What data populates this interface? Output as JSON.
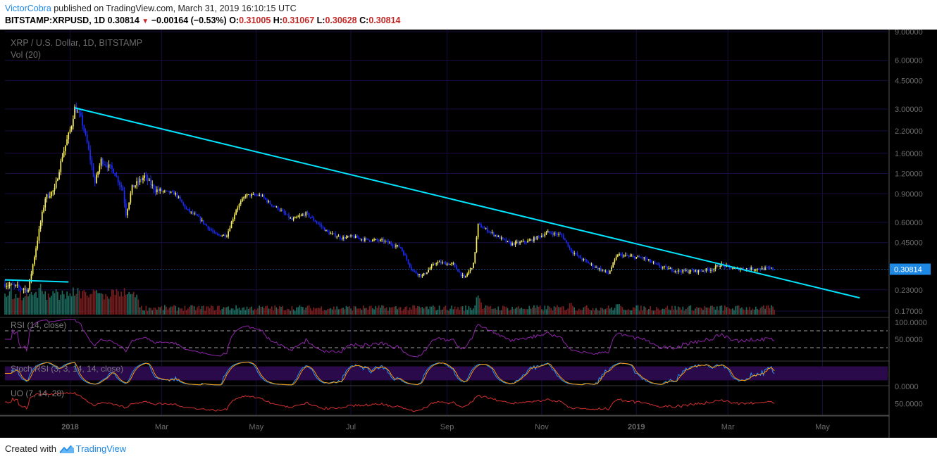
{
  "header": {
    "author": "VictorCobra",
    "published_text": " published on TradingView.com, March 31, 2019 16:10:15 UTC",
    "symbol": "BITSTAMP:XRPUSD, 1D",
    "last": "0.30814",
    "change": "−0.00164 (−0.53%)",
    "o_label": "O:",
    "o_value": "0.31005",
    "h_label": "H:",
    "h_value": "0.31067",
    "l_label": "L:",
    "l_value": "0.30628",
    "c_label": "C:",
    "c_value": "0.30814"
  },
  "footer": {
    "created_with": "Created with",
    "brand": "TradingView"
  },
  "chart_data": {
    "type": "candlestick",
    "title": "XRP / U.S. Dollar, 1D, BITSTAMP",
    "volume_label": "Vol (20)",
    "last_price_label": "0.30814",
    "last_price": 0.30814,
    "y_scale": "log",
    "y_ticks": [
      "9.00000",
      "6.00000",
      "4.50000",
      "3.00000",
      "2.20000",
      "1.60000",
      "1.20000",
      "0.90000",
      "0.60000",
      "0.45000",
      "0.23000",
      "0.17000"
    ],
    "y_tick_values": [
      9.0,
      6.0,
      4.5,
      3.0,
      2.2,
      1.6,
      1.2,
      0.9,
      0.6,
      0.45,
      0.23,
      0.17
    ],
    "x_ticks": [
      "2018",
      "Mar",
      "May",
      "Jul",
      "Sep",
      "Nov",
      "2019",
      "Mar",
      "May"
    ],
    "x_tick_dates": [
      "2018-01-01",
      "2018-03-01",
      "2018-05-01",
      "2018-07-01",
      "2018-09-01",
      "2018-11-01",
      "2019-01-01",
      "2019-03-01",
      "2019-05-01"
    ],
    "x_range": [
      "2017-11-20",
      "2019-06-12"
    ],
    "grid": true,
    "price_path": [
      [
        "2017-11-20",
        0.25
      ],
      [
        "2017-12-05",
        0.23
      ],
      [
        "2017-12-10",
        0.42
      ],
      [
        "2017-12-16",
        0.85
      ],
      [
        "2017-12-22",
        0.95
      ],
      [
        "2017-12-27",
        1.55
      ],
      [
        "2018-01-02",
        2.4
      ],
      [
        "2018-01-04",
        3.05
      ],
      [
        "2018-01-08",
        2.65
      ],
      [
        "2018-01-12",
        1.85
      ],
      [
        "2018-01-17",
        1.05
      ],
      [
        "2018-01-21",
        1.45
      ],
      [
        "2018-01-29",
        1.25
      ],
      [
        "2018-02-04",
        0.95
      ],
      [
        "2018-02-06",
        0.68
      ],
      [
        "2018-02-10",
        0.98
      ],
      [
        "2018-02-18",
        1.15
      ],
      [
        "2018-02-25",
        0.95
      ],
      [
        "2018-03-05",
        0.92
      ],
      [
        "2018-03-10",
        0.9
      ],
      [
        "2018-03-17",
        0.72
      ],
      [
        "2018-03-24",
        0.65
      ],
      [
        "2018-04-05",
        0.5
      ],
      [
        "2018-04-12",
        0.5
      ],
      [
        "2018-04-18",
        0.72
      ],
      [
        "2018-04-24",
        0.88
      ],
      [
        "2018-05-04",
        0.88
      ],
      [
        "2018-05-10",
        0.78
      ],
      [
        "2018-05-16",
        0.72
      ],
      [
        "2018-05-24",
        0.62
      ],
      [
        "2018-06-02",
        0.68
      ],
      [
        "2018-06-09",
        0.6
      ],
      [
        "2018-06-16",
        0.52
      ],
      [
        "2018-06-25",
        0.48
      ],
      [
        "2018-07-02",
        0.49
      ],
      [
        "2018-07-10",
        0.47
      ],
      [
        "2018-07-22",
        0.46
      ],
      [
        "2018-08-02",
        0.42
      ],
      [
        "2018-08-10",
        0.3
      ],
      [
        "2018-08-16",
        0.28
      ],
      [
        "2018-08-25",
        0.34
      ],
      [
        "2018-09-05",
        0.33
      ],
      [
        "2018-09-12",
        0.27
      ],
      [
        "2018-09-18",
        0.33
      ],
      [
        "2018-09-21",
        0.58
      ],
      [
        "2018-09-25",
        0.55
      ],
      [
        "2018-10-02",
        0.5
      ],
      [
        "2018-10-12",
        0.44
      ],
      [
        "2018-10-24",
        0.46
      ],
      [
        "2018-11-05",
        0.52
      ],
      [
        "2018-11-14",
        0.5
      ],
      [
        "2018-11-20",
        0.4
      ],
      [
        "2018-11-26",
        0.36
      ],
      [
        "2018-12-05",
        0.32
      ],
      [
        "2018-12-14",
        0.29
      ],
      [
        "2018-12-20",
        0.38
      ],
      [
        "2018-12-27",
        0.37
      ],
      [
        "2019-01-06",
        0.36
      ],
      [
        "2019-01-16",
        0.32
      ],
      [
        "2019-01-28",
        0.3
      ],
      [
        "2019-02-10",
        0.3
      ],
      [
        "2019-02-20",
        0.31
      ],
      [
        "2019-02-24",
        0.33
      ],
      [
        "2019-03-05",
        0.31
      ],
      [
        "2019-03-20",
        0.31
      ],
      [
        "2019-03-31",
        0.31
      ]
    ],
    "trendlines": [
      {
        "from": [
          "2018-01-04",
          3.05
        ],
        "to": [
          "2019-05-25",
          0.205
        ]
      },
      {
        "from": [
          "2017-11-20",
          0.265
        ],
        "to": [
          "2017-12-31",
          0.257
        ]
      }
    ],
    "volume_spikes": [
      [
        "2017-12-13",
        1.0
      ],
      [
        "2017-12-21",
        0.95
      ],
      [
        "2018-01-05",
        0.75
      ],
      [
        "2018-01-17",
        1.0
      ],
      [
        "2018-02-06",
        0.7
      ],
      [
        "2018-09-21",
        0.8
      ],
      [
        "2018-11-20",
        0.5
      ],
      [
        "2018-12-20",
        0.45
      ],
      [
        "2019-02-24",
        0.2
      ]
    ],
    "colors": {
      "background": "#000000",
      "grid": "#1a0b40",
      "trendline": "#00e5ff",
      "candle_up": "#fff45a",
      "candle_down": "#1a2cff",
      "volume_up": "#1f6b5f",
      "volume_down": "#7a1f1f",
      "rsi": "#8e24aa",
      "stoch_k": "#2196f3",
      "stoch_d": "#ff9800",
      "uo": "#d32f2f",
      "last_price_badge": "#1e88e5"
    },
    "indicators": [
      {
        "name": "RSI (14, close)",
        "ticks": [
          "100.0000",
          "50.0000"
        ],
        "range": [
          0,
          100
        ],
        "levels": [
          70,
          30
        ]
      },
      {
        "name": "Stoch RSI (3, 3, 14, 14, close)",
        "ticks": [
          "0.0000"
        ],
        "range": [
          0,
          100
        ],
        "levels": [
          80,
          20
        ]
      },
      {
        "name": "UO (7, 14, 28)",
        "ticks": [
          "50.0000"
        ],
        "range": [
          30,
          80
        ]
      }
    ]
  }
}
